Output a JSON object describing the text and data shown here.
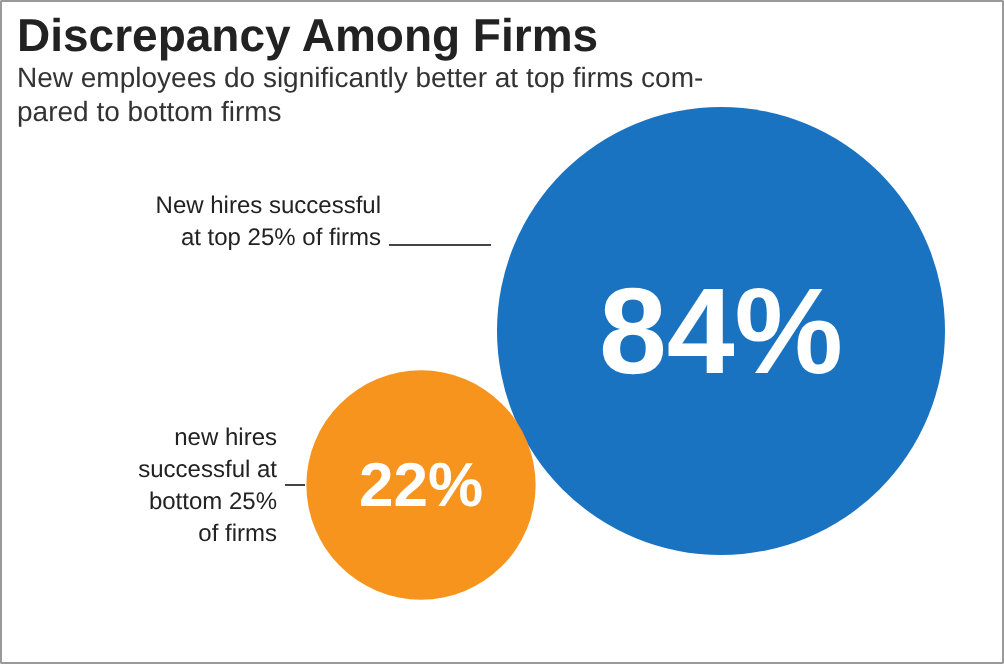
{
  "chart_data": {
    "type": "other",
    "title": "Discrepancy Among Firms",
    "subtitle": "New employees do significantly better at top firms com-\npared to bottom firms",
    "categories": [
      "New hires successful\nat top 25% of firms",
      "new hires\nsuccessful at\nbottom 25%\nof firms"
    ],
    "values": [
      84,
      22
    ],
    "value_labels": [
      "84%",
      "22%"
    ],
    "colors": [
      "#1a73c0",
      "#f7941d"
    ]
  }
}
